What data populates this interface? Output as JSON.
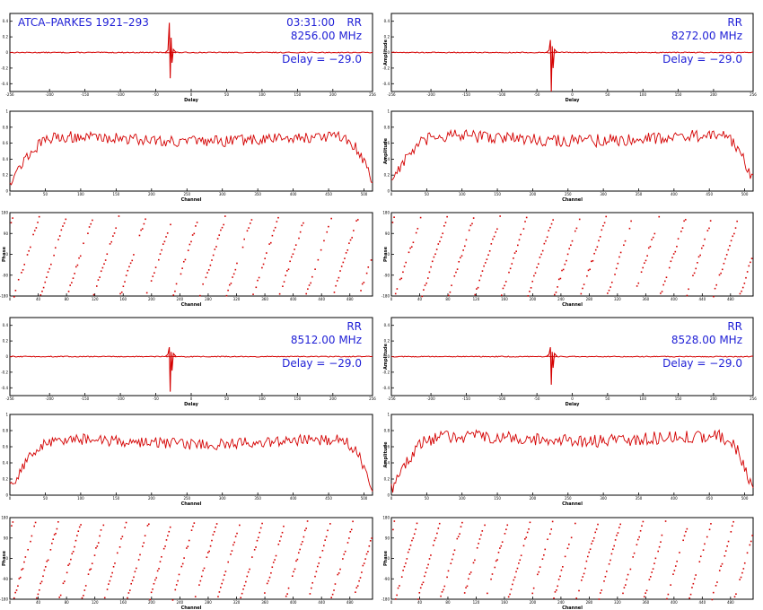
{
  "figure": {
    "source_label": "ATCA–PARKES 1921–293",
    "time_label": "03:31:00"
  },
  "colors": {
    "trace": "#d40000",
    "annotation": "#1f1fd6",
    "axis": "#000000"
  },
  "chart_data": [
    {
      "type": "line",
      "kind": "delay",
      "id": "delay-8256",
      "pol": "RR",
      "freq_label": "8256.00 MHz",
      "delay_label": "Delay = −29.0",
      "xlabel": "Delay",
      "ylabel": "",
      "xlim": [
        -256,
        256
      ],
      "ylim": [
        -0.5,
        0.5
      ],
      "baseline": 0,
      "peak_x": -29,
      "peak_up": 0.38,
      "peak_down": -0.33,
      "x_ticks": [
        -256,
        -200,
        -150,
        -100,
        -50,
        0,
        50,
        100,
        150,
        200,
        256
      ],
      "grid": false
    },
    {
      "type": "line",
      "kind": "delay",
      "id": "delay-8272",
      "pol": "RR",
      "freq_label": "8272.00 MHz",
      "delay_label": "Delay = −29.0",
      "xlabel": "Delay",
      "ylabel": "Amplitude",
      "xlim": [
        -256,
        256
      ],
      "ylim": [
        -0.5,
        0.5
      ],
      "baseline": 0,
      "peak_x": -29,
      "peak_up": 0.16,
      "peak_down": -0.5,
      "x_ticks": [
        -256,
        -200,
        -150,
        -100,
        -50,
        0,
        50,
        100,
        150,
        200,
        256
      ],
      "grid": false
    },
    {
      "type": "line",
      "kind": "spectrum",
      "id": "amp-8256",
      "xlabel": "Channel",
      "ylabel": "",
      "xlim": [
        0,
        512
      ],
      "ylim": [
        0,
        1
      ],
      "x_ticks": [
        0,
        50,
        100,
        150,
        200,
        250,
        300,
        350,
        400,
        450,
        500
      ],
      "plateau": 0.65,
      "edge_low": 0.12,
      "ripple": 0.07,
      "grid": false
    },
    {
      "type": "line",
      "kind": "spectrum",
      "id": "amp-8272",
      "xlabel": "Channel",
      "ylabel": "Amplitude",
      "xlim": [
        0,
        512
      ],
      "ylim": [
        0,
        1
      ],
      "x_ticks": [
        0,
        50,
        100,
        150,
        200,
        250,
        300,
        350,
        400,
        450,
        500
      ],
      "plateau": 0.66,
      "edge_low": 0.15,
      "ripple": 0.08,
      "grid": false
    },
    {
      "type": "scatter",
      "kind": "phase",
      "id": "phase-8256",
      "xlabel": "Channel",
      "ylabel": "Phase",
      "xlim": [
        0,
        512
      ],
      "ylim": [
        -180,
        180
      ],
      "x_ticks": [
        0,
        40,
        80,
        120,
        160,
        200,
        240,
        280,
        320,
        360,
        400,
        440,
        480
      ],
      "wrap_period_channels": 37.5,
      "points_per_wrap": 18,
      "grid": false
    },
    {
      "type": "scatter",
      "kind": "phase",
      "id": "phase-8272",
      "xlabel": "Channel",
      "ylabel": "Phase",
      "xlim": [
        0,
        512
      ],
      "ylim": [
        -180,
        180
      ],
      "x_ticks": [
        0,
        40,
        80,
        120,
        160,
        200,
        240,
        280,
        320,
        360,
        400,
        440,
        480
      ],
      "wrap_period_channels": 37.5,
      "points_per_wrap": 18,
      "grid": false
    },
    {
      "type": "line",
      "kind": "delay",
      "id": "delay-8512",
      "pol": "RR",
      "freq_label": "8512.00 MHz",
      "delay_label": "Delay = −29.0",
      "xlabel": "Delay",
      "ylabel": "",
      "xlim": [
        -256,
        256
      ],
      "ylim": [
        -0.5,
        0.5
      ],
      "baseline": 0,
      "peak_x": -29,
      "peak_up": 0.12,
      "peak_down": -0.45,
      "x_ticks": [
        -256,
        -200,
        -150,
        -100,
        -50,
        0,
        50,
        100,
        150,
        200,
        256
      ],
      "grid": false
    },
    {
      "type": "line",
      "kind": "delay",
      "id": "delay-8528",
      "pol": "RR",
      "freq_label": "8528.00 MHz",
      "delay_label": "Delay = −29.0",
      "xlabel": "Delay",
      "ylabel": "Amplitude",
      "xlim": [
        -256,
        256
      ],
      "ylim": [
        -0.5,
        0.5
      ],
      "baseline": 0,
      "peak_x": -29,
      "peak_up": 0.12,
      "peak_down": -0.36,
      "x_ticks": [
        -256,
        -200,
        -150,
        -100,
        -50,
        0,
        50,
        100,
        150,
        200,
        256
      ],
      "grid": false
    },
    {
      "type": "line",
      "kind": "spectrum",
      "id": "amp-8512",
      "xlabel": "Channel",
      "ylabel": "",
      "xlim": [
        0,
        512
      ],
      "ylim": [
        0,
        1
      ],
      "x_ticks": [
        0,
        50,
        100,
        150,
        200,
        250,
        300,
        350,
        400,
        450,
        500
      ],
      "plateau": 0.66,
      "edge_low": 0.1,
      "ripple": 0.07,
      "grid": false
    },
    {
      "type": "line",
      "kind": "spectrum",
      "id": "amp-8528",
      "xlabel": "Channel",
      "ylabel": "Amplitude",
      "xlim": [
        0,
        512
      ],
      "ylim": [
        0,
        1
      ],
      "x_ticks": [
        0,
        50,
        100,
        150,
        200,
        250,
        300,
        350,
        400,
        450,
        500
      ],
      "plateau": 0.7,
      "edge_low": 0.08,
      "ripple": 0.08,
      "grid": false
    },
    {
      "type": "scatter",
      "kind": "phase",
      "id": "phase-8512",
      "xlabel": "Channel",
      "ylabel": "Phase",
      "xlim": [
        0,
        512
      ],
      "ylim": [
        -180,
        180
      ],
      "x_ticks": [
        0,
        40,
        80,
        120,
        160,
        200,
        240,
        280,
        320,
        360,
        400,
        440,
        480
      ],
      "wrap_period_channels": 32,
      "points_per_wrap": 18,
      "grid": false
    },
    {
      "type": "scatter",
      "kind": "phase",
      "id": "phase-8528",
      "xlabel": "Channel",
      "ylabel": "Phase",
      "xlim": [
        0,
        512
      ],
      "ylim": [
        -180,
        180
      ],
      "x_ticks": [
        0,
        40,
        80,
        120,
        160,
        200,
        240,
        280,
        320,
        360,
        400,
        440,
        480
      ],
      "wrap_period_channels": 32,
      "points_per_wrap": 18,
      "grid": false
    }
  ]
}
